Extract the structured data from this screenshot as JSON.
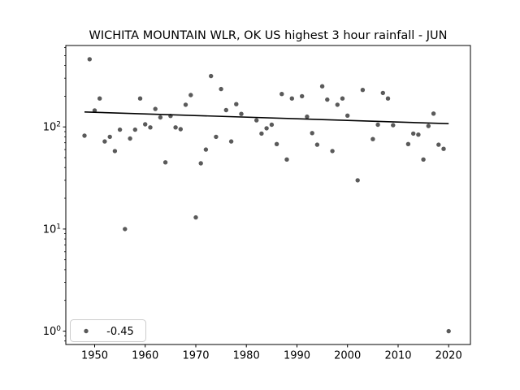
{
  "figure": {
    "background": "#ffffff"
  },
  "chart_data": {
    "type": "scatter",
    "title": "WICHITA MOUNTAIN WLR, OK US highest 3 hour rainfall - JUN",
    "xlabel": "",
    "ylabel": "",
    "x_axis": {
      "lim": [
        1944.3,
        2024.3
      ],
      "ticks": [
        1950,
        1960,
        1970,
        1980,
        1990,
        2000,
        2010,
        2020
      ]
    },
    "y_axis": {
      "scale": "log",
      "lim": [
        0.74,
        627
      ],
      "major_tick_exponents": [
        0,
        1,
        2
      ],
      "tick_label_base": "10"
    },
    "grid": false,
    "points": [
      [
        1948,
        82
      ],
      [
        1949,
        460
      ],
      [
        1950,
        145
      ],
      [
        1951,
        190
      ],
      [
        1952,
        72
      ],
      [
        1953,
        80
      ],
      [
        1954,
        58
      ],
      [
        1955,
        94
      ],
      [
        1956,
        10
      ],
      [
        1957,
        77
      ],
      [
        1958,
        94
      ],
      [
        1959,
        190
      ],
      [
        1960,
        106
      ],
      [
        1961,
        99
      ],
      [
        1962,
        150
      ],
      [
        1963,
        124
      ],
      [
        1964,
        45
      ],
      [
        1965,
        128
      ],
      [
        1966,
        99
      ],
      [
        1967,
        95
      ],
      [
        1968,
        165
      ],
      [
        1969,
        205
      ],
      [
        1970,
        13
      ],
      [
        1971,
        44
      ],
      [
        1972,
        60
      ],
      [
        1973,
        315
      ],
      [
        1974,
        80
      ],
      [
        1975,
        235
      ],
      [
        1976,
        146
      ],
      [
        1977,
        72
      ],
      [
        1978,
        167
      ],
      [
        1979,
        134
      ],
      [
        1982,
        116
      ],
      [
        1983,
        86
      ],
      [
        1984,
        97
      ],
      [
        1985,
        105
      ],
      [
        1986,
        68
      ],
      [
        1987,
        210
      ],
      [
        1988,
        48
      ],
      [
        1989,
        190
      ],
      [
        1991,
        200
      ],
      [
        1992,
        126
      ],
      [
        1993,
        87
      ],
      [
        1994,
        67
      ],
      [
        1995,
        250
      ],
      [
        1996,
        185
      ],
      [
        1997,
        58
      ],
      [
        1998,
        165
      ],
      [
        1999,
        190
      ],
      [
        2000,
        129
      ],
      [
        2002,
        30
      ],
      [
        2003,
        230
      ],
      [
        2005,
        76
      ],
      [
        2006,
        105
      ],
      [
        2007,
        215
      ],
      [
        2008,
        190
      ],
      [
        2009,
        104
      ],
      [
        2012,
        68
      ],
      [
        2013,
        86
      ],
      [
        2014,
        84
      ],
      [
        2015,
        48
      ],
      [
        2016,
        102
      ],
      [
        2017,
        135
      ],
      [
        2018,
        67
      ],
      [
        2019,
        61
      ],
      [
        2020,
        1
      ]
    ],
    "trend": {
      "label": "-0.45",
      "slope_per_year": -0.45,
      "start": [
        1948,
        140.0
      ],
      "end": [
        2020,
        107.6
      ]
    },
    "legend": {
      "label": "-0.45",
      "position": "lower left"
    },
    "colors": {
      "marker": "#5a5a5a",
      "trend_line": "#000000",
      "axis": "#000000",
      "legend_border": "#cccccc",
      "legend_fill": "#ffffff"
    }
  }
}
